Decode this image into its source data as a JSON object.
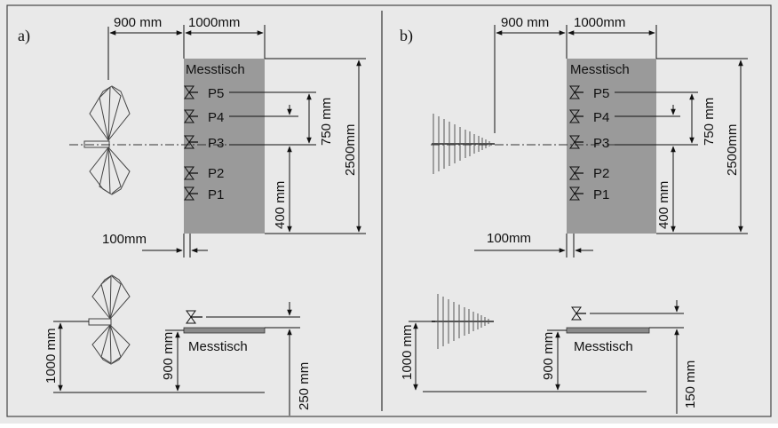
{
  "panels": [
    {
      "id": "a",
      "panel_label": "a)",
      "antenna": "biconical-antenna",
      "table_label": "Messtisch",
      "dim_distance": "900 mm",
      "dim_table_depth": "1000mm",
      "dim_table_length": "2500mm",
      "dim_p_spacing": "750 mm",
      "dim_p3_height": "400 mm",
      "dim_offset": "100mm",
      "dim_antenna_height": "1000 mm",
      "dim_table_height": "900 mm",
      "dim_eut_height": "250 mm",
      "positions": [
        "P5",
        "P4",
        "P3",
        "P2",
        "P1"
      ]
    },
    {
      "id": "b",
      "panel_label": "b)",
      "antenna": "log-periodic-antenna",
      "table_label": "Messtisch",
      "dim_distance": "900 mm",
      "dim_table_depth": "1000mm",
      "dim_table_length": "2500mm",
      "dim_p_spacing": "750 mm",
      "dim_p3_height": "400 mm",
      "dim_offset": "100mm",
      "dim_antenna_height": "1000 mm",
      "dim_table_height": "900 mm",
      "dim_eut_height": "150 mm",
      "positions": [
        "P5",
        "P4",
        "P3",
        "P2",
        "P1"
      ]
    }
  ],
  "colors": {
    "background": "#e9e9e9",
    "table": "#9a9a9a",
    "line": "#111111"
  }
}
